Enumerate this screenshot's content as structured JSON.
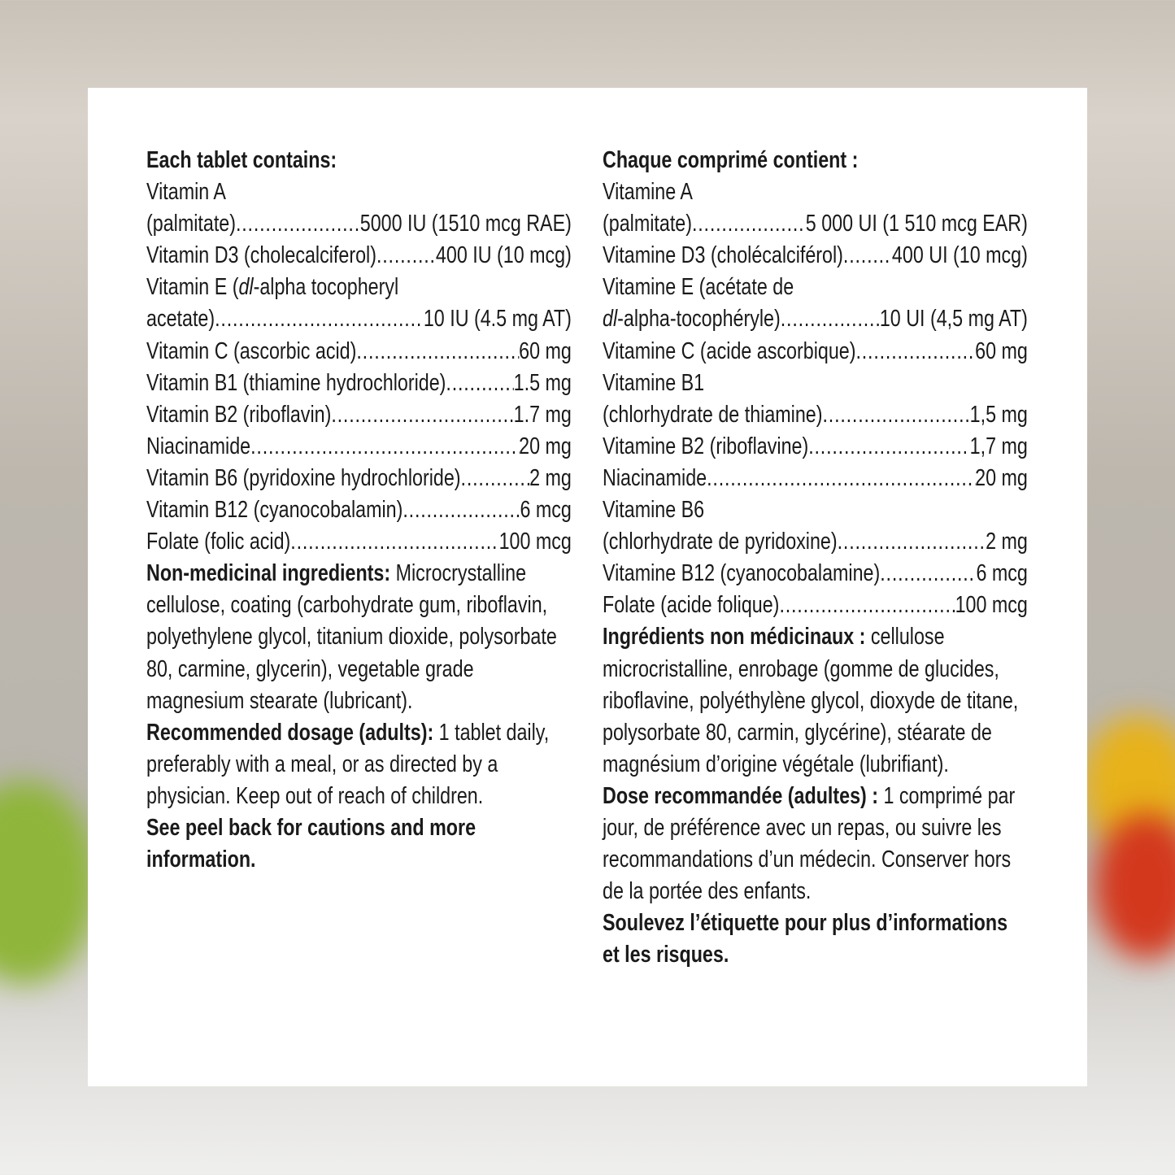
{
  "english": {
    "heading": "Each tablet contains:",
    "rows": [
      {
        "label": "Vitamin A"
      },
      {
        "label": "(palmitate)",
        "value": " 5000 IU (1510 mcg RAE)"
      },
      {
        "label": "Vitamin D3 (cholecalciferol)",
        "value": "400 IU (10 mcg)"
      },
      {
        "label": "Vitamin E (",
        "italic": "dl",
        "label_rest": "-alpha tocopheryl"
      },
      {
        "label": " acetate) ",
        "value": " 10 IU (4.5 mg AT)"
      },
      {
        "label": "Vitamin C (ascorbic acid) ",
        "value": "60 mg"
      },
      {
        "label": "Vitamin B1 (thiamine hydrochloride) ",
        "value": " 1.5 mg"
      },
      {
        "label": "Vitamin B2 (riboflavin)",
        "value": "1.7 mg"
      },
      {
        "label": "Niacinamide ",
        "value": " 20 mg"
      },
      {
        "label": "Vitamin B6 (pyridoxine hydrochloride)",
        "value": " 2 mg"
      },
      {
        "label": "Vitamin B12 (cyanocobalamin)",
        "value": " 6 mcg"
      },
      {
        "label": "Folate (folic acid) ",
        "value": "100 mcg"
      }
    ],
    "paragraphs": [
      {
        "bold": "Non-medicinal ingredients:",
        "text": " Microcrystalline cellulose, coating (carbohydrate gum, riboflavin, polyethylene glycol, titanium dioxide, polysorbate 80, carmine, glycerin), vegetable grade magnesium stearate (lubricant)."
      },
      {
        "bold": "Recommended dosage (adults):",
        "text": " 1 tablet daily, preferably with a meal, or as directed by a physician. Keep out of reach of children."
      },
      {
        "bold": "See peel back for cautions and more information.",
        "text": ""
      }
    ]
  },
  "french": {
    "heading": "Chaque comprimé contient :",
    "rows": [
      {
        "label": "Vitamine A"
      },
      {
        "label": "(palmitate)",
        "value": "5 000 UI (1 510 mcg EAR)"
      },
      {
        "label": "Vitamine D3 (cholécalciférol)",
        "value": " 400 UI (10 mcg)"
      },
      {
        "label": "Vitamine E (acétate de"
      },
      {
        "label": "",
        "italic": "dl",
        "label_rest": "-alpha-tocophéryle)",
        "value": "10 UI (4,5 mg AT)"
      },
      {
        "label": "Vitamine C (acide ascorbique) ",
        "value": "60 mg"
      },
      {
        "label": "Vitamine B1"
      },
      {
        "label": "(chlorhydrate de thiamine) ",
        "value": "1,5 mg"
      },
      {
        "label": "Vitamine B2 (riboflavine) ",
        "value": "1,7 mg"
      },
      {
        "label": "Niacinamide ",
        "value": " 20 mg"
      },
      {
        "label": "Vitamine B6"
      },
      {
        "label": "(chlorhydrate de pyridoxine)",
        "value": " 2 mg"
      },
      {
        "label": "Vitamine B12 (cyanocobalamine)",
        "value": " 6 mcg"
      },
      {
        "label": "Folate (acide folique)",
        "value": "100 mcg"
      }
    ],
    "paragraphs": [
      {
        "bold": "Ingrédients non médicinaux :",
        "text": " cellulose microcristalline, enrobage (gomme de glucides, riboflavine, polyéthylène glycol, dioxyde de titane, polysorbate 80, carmin, glycérine), stéarate de magnésium d’origine végétale (lubrifiant)."
      },
      {
        "bold": "Dose recommandée (adultes) :",
        "text": " 1 comprimé par jour, de préférence avec un repas, ou suivre les recommandations d’un médecin. Conserver hors de la portée des enfants."
      },
      {
        "bold": "Soulevez l’étiquette pour plus d’informations et les risques.",
        "text": ""
      }
    ]
  },
  "colors": {
    "panel": "#ffffff",
    "text": "#1a1a1a"
  }
}
